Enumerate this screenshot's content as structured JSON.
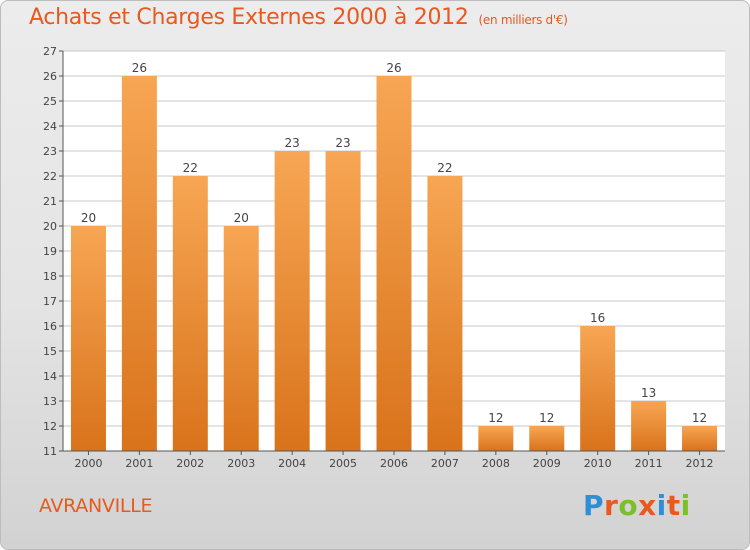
{
  "title": "Achats et Charges Externes 2000 à 2012",
  "unit_note": "(en milliers d'€)",
  "town": "AVRANVILLE",
  "brand": {
    "text": "Proxiti",
    "colors": [
      "#2f8fd6",
      "#e8591f",
      "#7bbf2a",
      "#e8591f",
      "#2f8fd6",
      "#e8591f",
      "#7bbf2a"
    ]
  },
  "colors": {
    "accent": "#e8591f",
    "bar_top": "#f7a654",
    "bar_bottom": "#d9731b",
    "grid": "#c8c8c8"
  },
  "chart_data": {
    "type": "bar",
    "categories": [
      "2000",
      "2001",
      "2002",
      "2003",
      "2004",
      "2005",
      "2006",
      "2007",
      "2008",
      "2009",
      "2010",
      "2011",
      "2012"
    ],
    "values": [
      20,
      26,
      22,
      20,
      23,
      23,
      26,
      22,
      12,
      12,
      16,
      13,
      12
    ],
    "title": "Achats et Charges Externes 2000 à 2012",
    "ylim": [
      11,
      27
    ],
    "yticks": [
      11,
      12,
      13,
      14,
      15,
      16,
      17,
      18,
      19,
      20,
      21,
      22,
      23,
      24,
      25,
      26,
      27
    ],
    "grid": true,
    "data_labels": true
  }
}
